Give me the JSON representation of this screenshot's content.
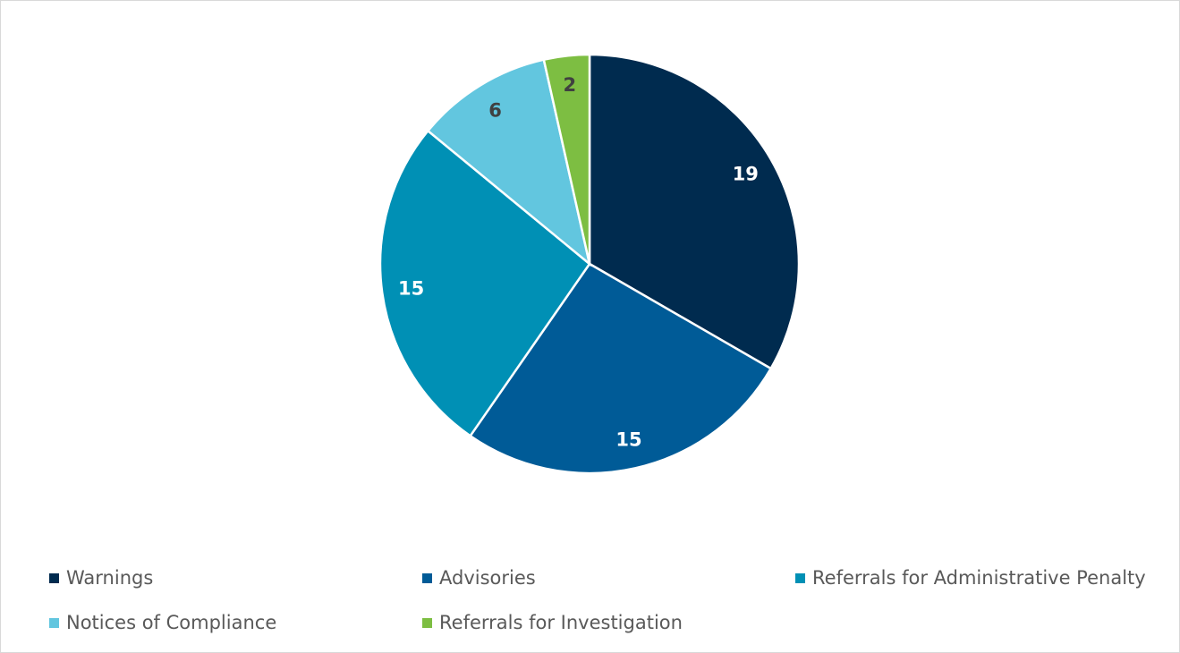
{
  "chart_data": {
    "type": "pie",
    "title": "",
    "categories": [
      "Warnings",
      "Advisories",
      "Referrals for Administrative Penalty",
      "Notices of Compliance",
      "Referrals for Investigation"
    ],
    "values": [
      19,
      15,
      15,
      6,
      2
    ],
    "colors": [
      "#002b4f",
      "#005b97",
      "#0090b5",
      "#62c6df",
      "#7dbe42"
    ],
    "label_colors": [
      "#ffffff",
      "#ffffff",
      "#ffffff",
      "#404040",
      "#404040"
    ],
    "start_angle": "top, clockwise",
    "legend_position": "bottom"
  }
}
